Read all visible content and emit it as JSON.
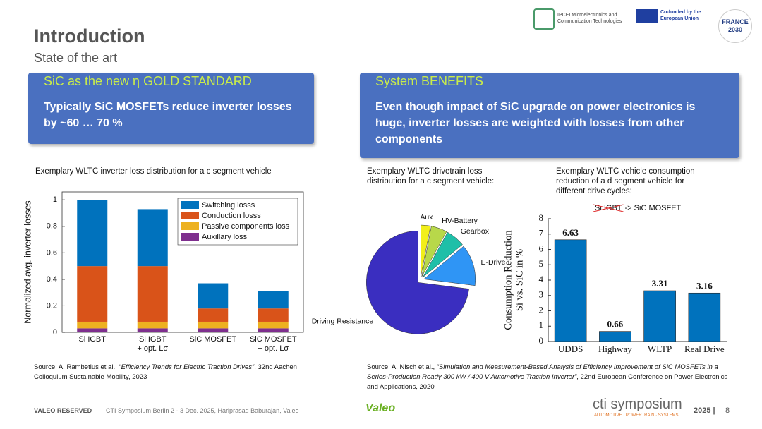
{
  "header": {
    "title": "Introduction",
    "subtitle": "State of the art"
  },
  "logos": {
    "ipcei": "IPCEI Microelectronics and Communication Technologies",
    "eu": "Co-funded by the European Union",
    "france": "FRANCE 2030"
  },
  "left_box": {
    "title": "SiC as the new η GOLD STANDARD",
    "text": "Typically SiC MOSFETs reduce inverter losses by ~60 … 70 %"
  },
  "right_box": {
    "title": "System BENEFITS",
    "text": "Even though impact of SiC upgrade on power electronics is huge, inverter losses are weighted with losses from other components"
  },
  "chart_data": [
    {
      "type": "bar",
      "stacked": true,
      "box": true,
      "legend": "upper right",
      "title": "Exemplary WLTC inverter loss distribution for a c segment vehicle",
      "ylabel": [
        "Normalized avg. inverter losses"
      ],
      "categories": [
        "Si IGBT",
        "Si IGBT\n+ opt. Lσ",
        "SiC MOSFET",
        "SiC MOSFET\n+ opt. Lσ"
      ],
      "series": [
        {
          "name": "Switching losss",
          "color": "#0072bd",
          "values": [
            0.5,
            0.43,
            0.19,
            0.13
          ]
        },
        {
          "name": "Conduction losss",
          "color": "#d95319",
          "values": [
            0.42,
            0.42,
            0.1,
            0.1
          ]
        },
        {
          "name": "Passive components loss",
          "color": "#edb120",
          "values": [
            0.05,
            0.05,
            0.05,
            0.05
          ]
        },
        {
          "name": "Auxillary loss",
          "color": "#7e2f8e",
          "values": [
            0.03,
            0.03,
            0.03,
            0.03
          ]
        }
      ],
      "ylim": [
        0,
        1.06
      ],
      "yticks": [
        0,
        0.2,
        0.4,
        0.6,
        0.8,
        1
      ]
    },
    {
      "type": "pie",
      "title": "Exemplary WLTC drivetrain loss distribution for a c segment vehicle:",
      "categories": [
        "Aux",
        "HV-Battery",
        "Gearbox",
        "E-Drive",
        "Driving Resistance"
      ],
      "values": [
        3,
        5,
        6,
        13,
        73
      ],
      "colors": [
        "#f2ef1a",
        "#b8d84a",
        "#1fbfa8",
        "#2f95f5",
        "#3a2ec0"
      ]
    },
    {
      "type": "bar",
      "box": false,
      "title": "Exemplary WLTC vehicle consumption reduction of a d segment vehicle for different drive cycles:",
      "annotation": {
        "struck": "Si IGBT",
        "text": "-> SiC MOSFET"
      },
      "ylabel": [
        "Consumption Reduction",
        "Si vs. SiC in %"
      ],
      "categories": [
        "UDDS",
        "Highway",
        "WLTP",
        "Real Drive"
      ],
      "values": [
        6.63,
        0.66,
        3.31,
        3.16
      ],
      "color": "#0072bd",
      "ylim": [
        0,
        8
      ],
      "yticks": [
        0,
        1,
        2,
        3,
        4,
        5,
        6,
        7,
        8
      ]
    }
  ],
  "sources": [
    {
      "prefix": "Source: A. Rambetius et al.,",
      "title": "“Efficiency Trends for Electric Traction Drives”",
      "suffix": ", 32nd Aachen Colloquium Sustainable Mobility, 2023"
    },
    {
      "prefix": "Source:  A. Nisch et al.,",
      "title": "“Simulation and Measurement-Based Analysis of Efficiency Improvement of SiC MOSFETs in a Series-Production Ready 300 kW / 400 V Automotive Traction Inverter”",
      "suffix": ", 22nd European Conference on Power Electronics and Applications, 2020"
    }
  ],
  "footer": {
    "reserved": "VALEO RESERVED",
    "event": "CTI Symposium Berlin 2 - 3 Dec. 2025, Hariprasad Baburajan, Valeo",
    "brand": "Valeo",
    "cti": "cti symposium",
    "cti_tag": "AUTOMOTIVE · POWERTRAIN · SYSTEMS",
    "year": "2025 |",
    "page": "8"
  }
}
